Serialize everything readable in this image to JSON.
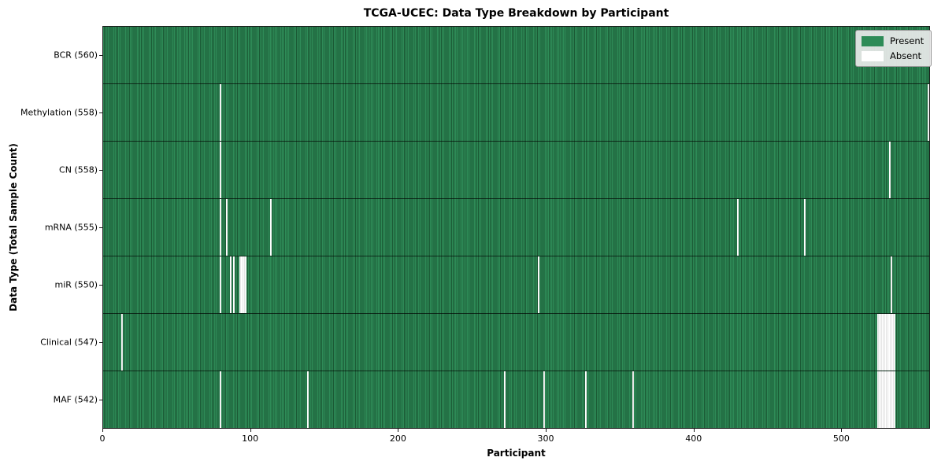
{
  "title": "TCGA-UCEC: Data Type Breakdown by Participant",
  "chart_data": {
    "type": "heatmap",
    "title": "TCGA-UCEC: Data Type Breakdown by Participant",
    "xlabel": "Participant",
    "ylabel": "Data Type (Total Sample Count)",
    "x_ticks": [
      0,
      100,
      200,
      300,
      400,
      500
    ],
    "x_max": 560,
    "n_participants": 560,
    "grid": false,
    "legend_position": "upper right",
    "legend": [
      {
        "label": "Present",
        "color": "#2e8b57"
      },
      {
        "label": "Absent",
        "color": "#ffffff"
      }
    ],
    "colors": {
      "present": "#2e8b57",
      "present_edge_dark": "#1b5a35",
      "absent": "#ffffff",
      "absent_edge": "#c9c9c9",
      "row_separator": "#000000",
      "plot_border": "#1a1a1a"
    },
    "rows": [
      {
        "label": "BCR (560)",
        "data_type": "BCR",
        "count": 560,
        "absent_participants": []
      },
      {
        "label": "Methylation (558)",
        "data_type": "Methylation",
        "count": 558,
        "absent_participants": [
          79,
          558
        ]
      },
      {
        "label": "CN (558)",
        "data_type": "CN",
        "count": 558,
        "absent_participants": [
          79,
          532
        ]
      },
      {
        "label": "mRNA (555)",
        "data_type": "mRNA",
        "count": 555,
        "absent_participants": [
          79,
          83,
          113,
          429,
          474
        ]
      },
      {
        "label": "miR (550)",
        "data_type": "miR",
        "count": 550,
        "absent_participants": [
          79,
          86,
          88,
          92,
          93,
          94,
          95,
          96,
          294,
          533
        ]
      },
      {
        "label": "Clinical (547)",
        "data_type": "Clinical",
        "count": 547,
        "absent_participants": [
          12,
          524,
          525,
          526,
          527,
          528,
          529,
          530,
          531,
          532,
          533,
          534,
          535
        ]
      },
      {
        "label": "MAF (542)",
        "data_type": "MAF",
        "count": 542,
        "absent_participants": [
          79,
          138,
          271,
          298,
          326,
          358,
          524,
          525,
          526,
          527,
          528,
          529,
          530,
          531,
          532,
          533,
          534,
          535
        ]
      }
    ]
  }
}
